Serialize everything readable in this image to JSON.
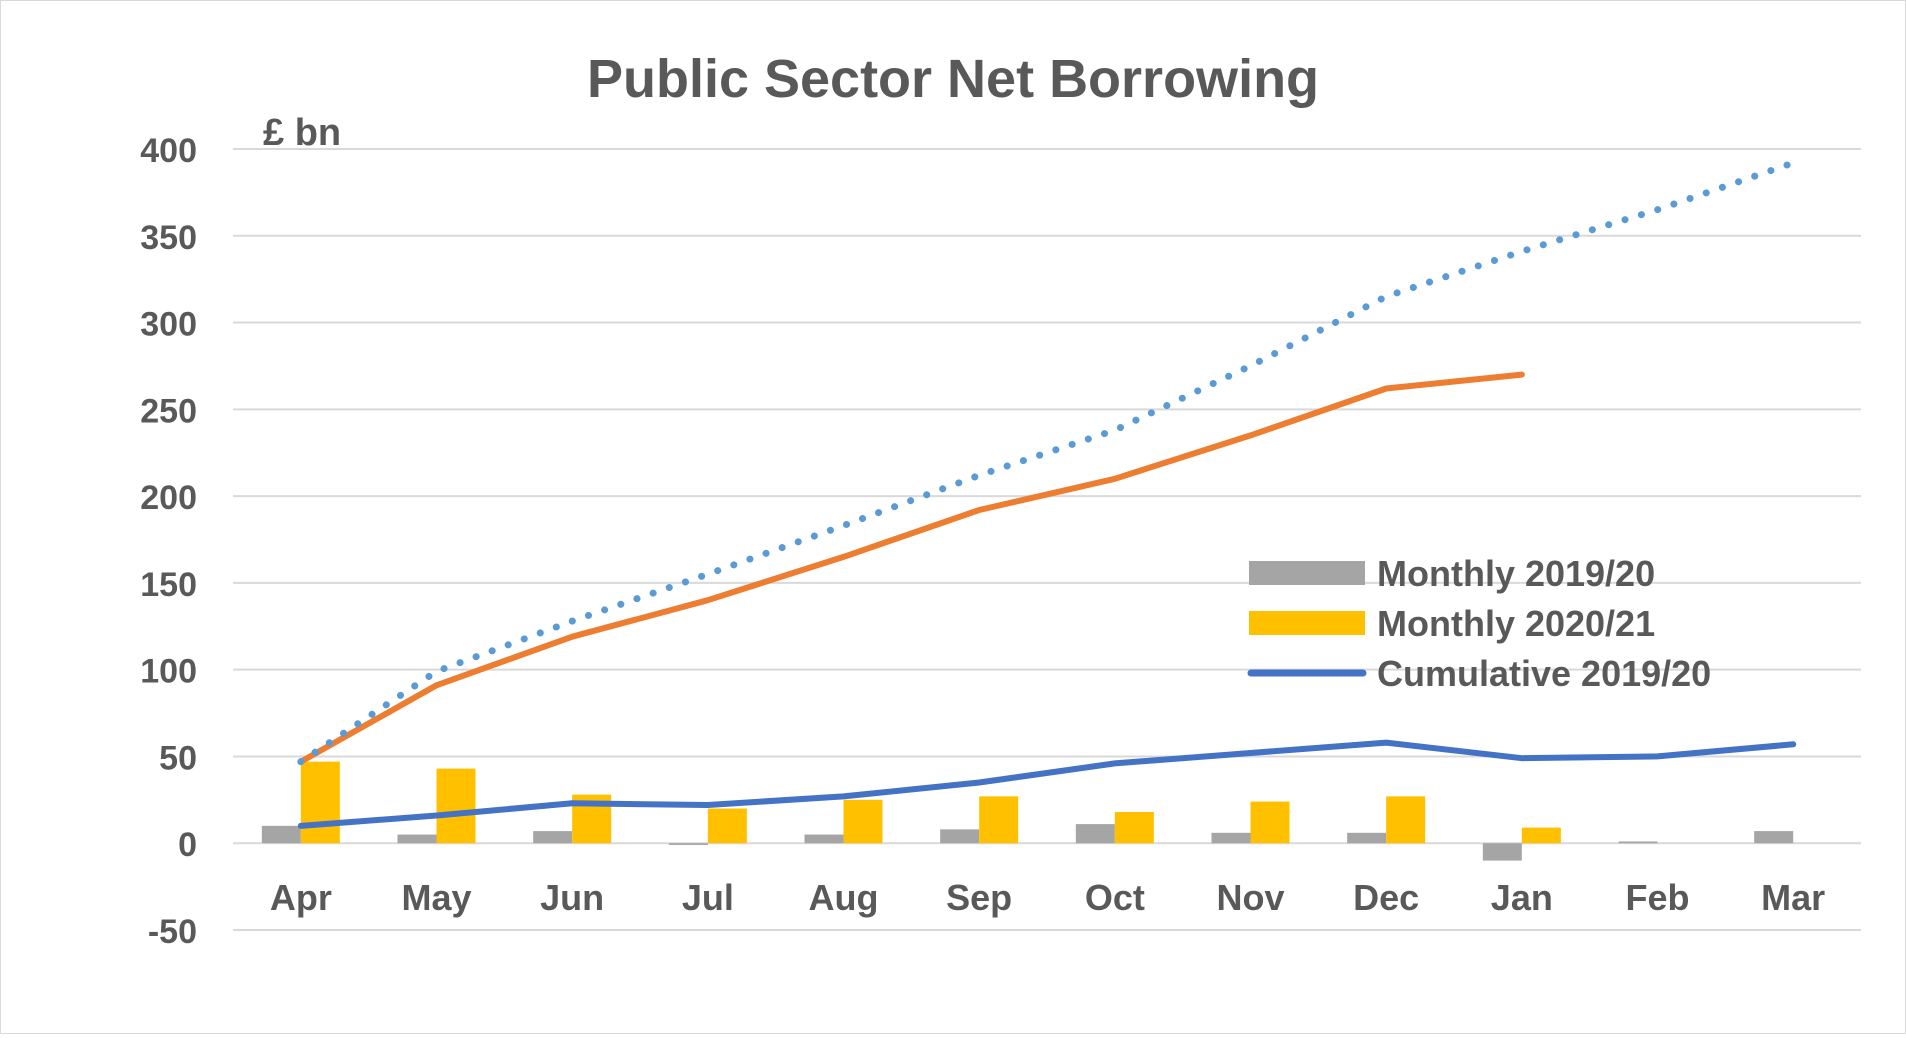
{
  "chart_data": {
    "type": "bar",
    "title": "Public Sector Net Borrowing",
    "ylabel": "£ bn",
    "xlabel": "",
    "categories": [
      "Apr",
      "May",
      "Jun",
      "Jul",
      "Aug",
      "Sep",
      "Oct",
      "Nov",
      "Dec",
      "Jan",
      "Feb",
      "Mar"
    ],
    "ylim": [
      -50,
      400
    ],
    "yticks": [
      -50,
      0,
      50,
      100,
      150,
      200,
      250,
      300,
      350,
      400
    ],
    "grid": true,
    "legend_position": "right-middle",
    "series": [
      {
        "name": "Monthly 2019/20",
        "type": "bar",
        "color": "#a5a5a5",
        "values": [
          10,
          5,
          7,
          -1,
          5,
          8,
          11,
          6,
          6,
          -10,
          1,
          7
        ]
      },
      {
        "name": "Monthly 2020/21",
        "type": "bar",
        "color": "#ffc000",
        "values": [
          47,
          43,
          28,
          20,
          25,
          27,
          18,
          24,
          27,
          9,
          null,
          null
        ]
      },
      {
        "name": "Cumulative 2019/20",
        "type": "line",
        "color": "#4472c4",
        "values": [
          10,
          16,
          23,
          22,
          27,
          35,
          46,
          52,
          58,
          49,
          50,
          57
        ]
      },
      {
        "type": "line",
        "color": "#ed7d31",
        "values": [
          47,
          91,
          119,
          140,
          165,
          192,
          210,
          235,
          262,
          270,
          null,
          null
        ]
      },
      {
        "type": "line",
        "style": "dotted",
        "color": "#5b9bd5",
        "values": [
          47,
          99,
          128,
          155,
          183,
          212,
          238,
          275,
          315,
          341,
          365,
          392
        ]
      }
    ]
  }
}
